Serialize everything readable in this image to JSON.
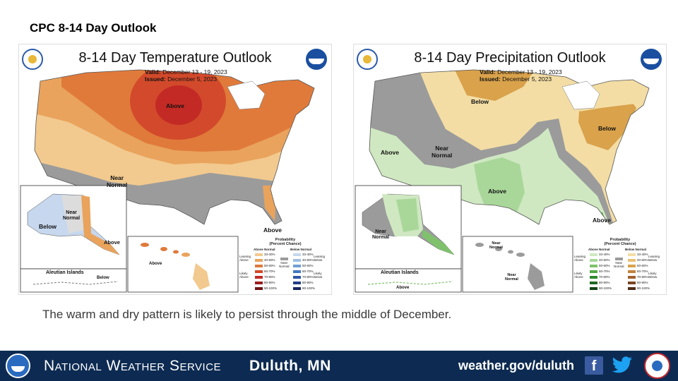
{
  "slide_title": "CPC 8-14 Day Outlook",
  "temp": {
    "title": "8-14 Day Temperature Outlook",
    "valid_label": "Valid:",
    "valid": "December 13 - 19, 2023",
    "issued_label": "Issued:",
    "issued": "December 5, 2023",
    "labels": {
      "above_main": "Above",
      "near_normal": "Near\nNormal",
      "above_fl": "Above",
      "ak_below": "Below",
      "ak_near": "Near\nNormal",
      "ak_above": "Above",
      "aleutian": "Aleutian Islands",
      "aleutian_below": "Below",
      "hi_above": "Above"
    },
    "legend": {
      "title": "Probability\n(Percent Chance)",
      "above_head": "Above Normal",
      "below_head": "Below Normal",
      "leaning_above": "Leaning\nAbove",
      "likely_above": "Likely\nAbove",
      "leaning_below": "Leaning\nBelow",
      "likely_below": "Likely\nBelow",
      "near_normal": "Near\nNormal",
      "ranges": [
        "33-40%",
        "40-50%",
        "50-60%",
        "60-70%",
        "70-80%",
        "80-90%",
        "90-100%"
      ],
      "above_colors": [
        "#f2c98e",
        "#e9a35c",
        "#e07a3b",
        "#d24a2b",
        "#c32a25",
        "#9e1d1f",
        "#6e1416"
      ],
      "below_colors": [
        "#c6d7ee",
        "#9fbee4",
        "#6f9fd6",
        "#4379c2",
        "#2d58a8",
        "#233d86",
        "#1a2660"
      ]
    }
  },
  "precip": {
    "title": "8-14 Day Precipitation Outlook",
    "valid_label": "Valid:",
    "valid": "December 13 - 19, 2023",
    "issued_label": "Issued:",
    "issued": "December 5, 2023",
    "labels": {
      "below_north": "Below",
      "near_normal": "Near\nNormal",
      "above_west": "Above",
      "above_south": "Above",
      "below_ne": "Below",
      "above_fl": "Above",
      "ak_near": "Near\nNormal",
      "aleutian": "Aleutian Islands",
      "aleutian_above": "Above",
      "hi_near_a": "Near\nNormal",
      "hi_near_b": "Near\nNormal"
    },
    "legend": {
      "title": "Probability\n(Percent Chance)",
      "above_head": "Above Normal",
      "below_head": "Below Normal",
      "leaning_above": "Leaning\nAbove",
      "likely_above": "Likely\nAbove",
      "leaning_below": "Leaning\nBelow",
      "likely_below": "Likely\nBelow",
      "near_normal": "Near\nNormal",
      "ranges": [
        "33-40%",
        "40-50%",
        "50-60%",
        "60-70%",
        "70-80%",
        "80-90%",
        "90-100%"
      ],
      "above_colors": [
        "#cfe8c1",
        "#a9d79a",
        "#7fc16d",
        "#52a846",
        "#2f8a30",
        "#1e6a22",
        "#0f4514"
      ],
      "below_colors": [
        "#f3dda4",
        "#e8c173",
        "#d9a24b",
        "#c4803a",
        "#a0602d",
        "#7a4622",
        "#4f2c16"
      ]
    }
  },
  "caption": "The warm and dry pattern is likely to persist through the middle of December.",
  "footer": {
    "agency": "National Weather Service",
    "office": "Duluth, MN",
    "url": "weather.gov/duluth",
    "facebook": "f"
  },
  "colors": {
    "footer_bg": "#0d2b52",
    "near_normal_gray": "#9b9b9b"
  }
}
